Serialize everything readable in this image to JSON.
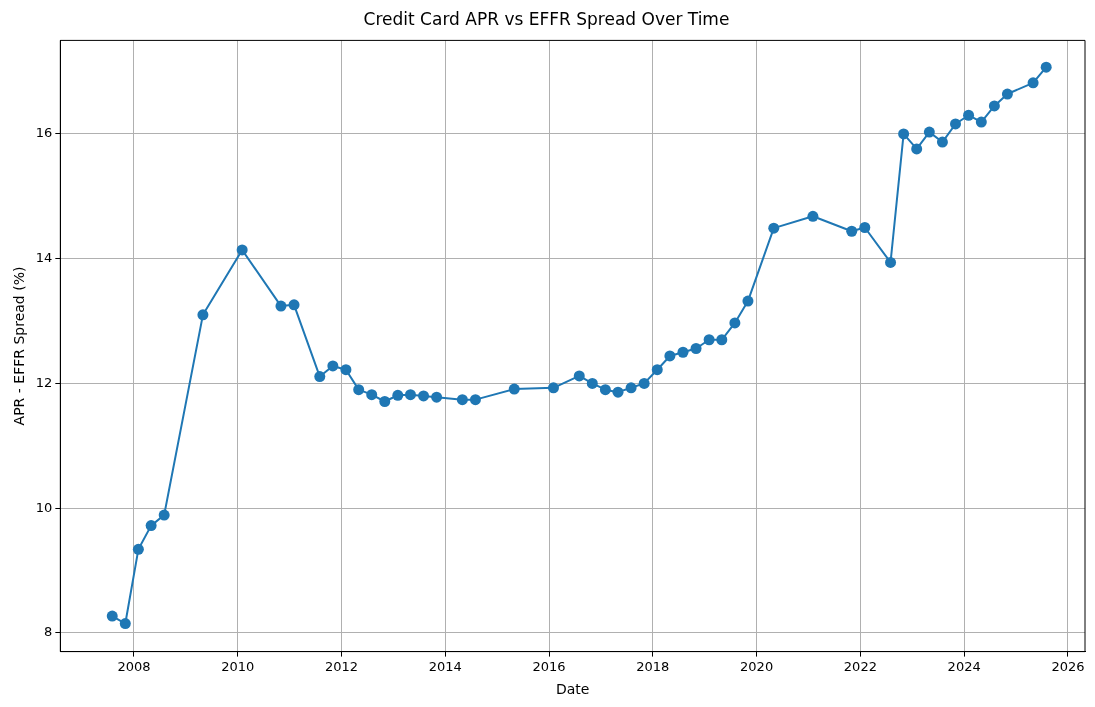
{
  "chart_data": {
    "type": "line",
    "title": "Credit Card APR vs EFFR Spread Over Time",
    "xlabel": "Date",
    "ylabel": "APR - EFFR Spread (%)",
    "x": [
      "2007-08",
      "2007-11",
      "2008-02",
      "2008-05",
      "2008-08",
      "2009-05",
      "2010-02",
      "2010-11",
      "2011-02",
      "2011-08",
      "2011-11",
      "2012-02",
      "2012-05",
      "2012-08",
      "2012-11",
      "2013-02",
      "2013-05",
      "2013-08",
      "2013-11",
      "2014-05",
      "2014-08",
      "2015-05",
      "2016-02",
      "2016-08",
      "2016-11",
      "2017-02",
      "2017-05",
      "2017-08",
      "2017-11",
      "2018-02",
      "2018-05",
      "2018-08",
      "2018-11",
      "2019-02",
      "2019-05",
      "2019-08",
      "2019-11",
      "2020-05",
      "2021-02",
      "2021-11",
      "2022-02",
      "2022-08",
      "2022-11",
      "2023-02",
      "2023-05",
      "2023-08",
      "2023-11",
      "2024-02",
      "2024-05",
      "2024-08",
      "2024-11",
      "2025-05",
      "2025-08"
    ],
    "series": [
      {
        "color": "#1f77b4",
        "values": [
          8.27,
          8.15,
          9.34,
          9.72,
          9.89,
          13.1,
          14.14,
          13.24,
          13.26,
          12.11,
          12.28,
          12.22,
          11.9,
          11.82,
          11.71,
          11.81,
          11.82,
          11.8,
          11.78,
          11.74,
          11.74,
          11.91,
          11.93,
          12.12,
          12.0,
          11.9,
          11.86,
          11.93,
          12.0,
          12.22,
          12.44,
          12.5,
          12.56,
          12.7,
          12.7,
          12.97,
          13.32,
          14.49,
          14.68,
          14.44,
          14.5,
          13.94,
          16.0,
          15.76,
          16.03,
          15.87,
          16.16,
          16.3,
          16.19,
          16.45,
          16.64,
          16.82,
          17.07
        ]
      }
    ],
    "xlim": [
      "2006-08",
      "2026-05"
    ],
    "xticks": [
      "2008",
      "2010",
      "2012",
      "2014",
      "2016",
      "2018",
      "2020",
      "2022",
      "2024",
      "2026"
    ],
    "ylim": [
      7.7,
      17.5
    ],
    "yticks": [
      8,
      10,
      12,
      14,
      16
    ],
    "grid": true,
    "marker": "circle",
    "line_style": "solid",
    "legend": false
  }
}
